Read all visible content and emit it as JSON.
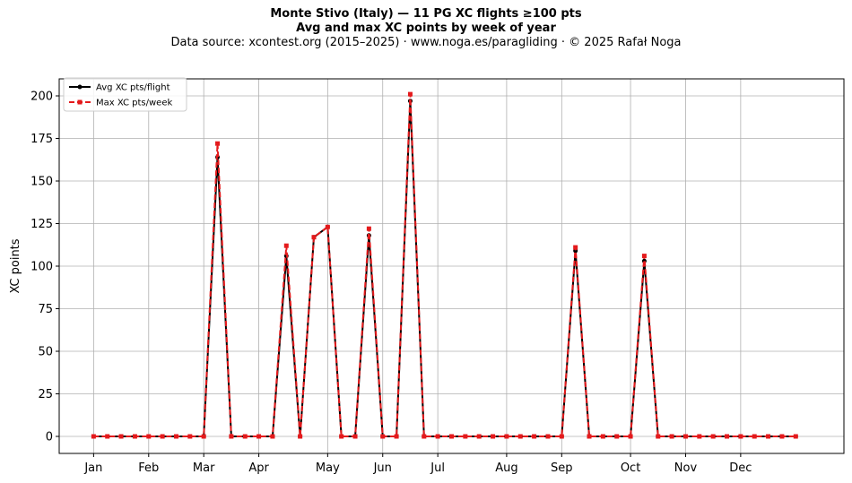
{
  "title": "Monte Stivo (Italy)  —  11 PG XC flights ≥100 pts",
  "subtitle": "Avg and max XC points by week of year",
  "source": "Data source: xcontest.org (2015–2025)  ·  www.noga.es/paragliding  ·  © 2025 Rafał Noga",
  "chart_data": {
    "type": "line",
    "title": "Monte Stivo (Italy)  —  11 PG XC flights ≥100 pts",
    "subtitle": "Avg and max XC points by week of year",
    "ylabel": "XC points",
    "xlabel": "",
    "ylim": [
      -10,
      210
    ],
    "xlim": [
      -2.5,
      54.5
    ],
    "yticks": [
      0,
      25,
      50,
      75,
      100,
      125,
      150,
      175,
      200
    ],
    "xticks": [
      {
        "week": 0,
        "label": "Jan"
      },
      {
        "week": 4,
        "label": "Feb"
      },
      {
        "week": 8,
        "label": "Mar"
      },
      {
        "week": 12,
        "label": "Apr"
      },
      {
        "week": 17,
        "label": "May"
      },
      {
        "week": 21,
        "label": "Jun"
      },
      {
        "week": 25,
        "label": "Jul"
      },
      {
        "week": 30,
        "label": "Aug"
      },
      {
        "week": 34,
        "label": "Sep"
      },
      {
        "week": 39,
        "label": "Oct"
      },
      {
        "week": 43,
        "label": "Nov"
      },
      {
        "week": 47,
        "label": "Dec"
      }
    ],
    "grid": true,
    "legend_position": "top-left",
    "x": [
      0,
      1,
      2,
      3,
      4,
      5,
      6,
      7,
      8,
      9,
      10,
      11,
      12,
      13,
      14,
      15,
      16,
      17,
      18,
      19,
      20,
      21,
      22,
      23,
      24,
      25,
      26,
      27,
      28,
      29,
      30,
      31,
      32,
      33,
      34,
      35,
      36,
      37,
      38,
      39,
      40,
      41,
      42,
      43,
      44,
      45,
      46,
      47,
      48,
      49,
      50,
      51
    ],
    "series": [
      {
        "name": "Avg XC pts/flight",
        "color": "#000000",
        "style": "solid",
        "marker": "circle",
        "values": [
          0,
          0,
          0,
          0,
          0,
          0,
          0,
          0,
          0,
          164,
          0,
          0,
          0,
          0,
          106,
          0,
          117,
          123,
          0,
          0,
          118,
          0,
          0,
          197,
          0,
          0,
          0,
          0,
          0,
          0,
          0,
          0,
          0,
          0,
          0,
          109,
          0,
          0,
          0,
          0,
          103,
          0,
          0,
          0,
          0,
          0,
          0,
          0,
          0,
          0,
          0,
          0
        ]
      },
      {
        "name": "Max XC pts/week",
        "color": "#e41a1c",
        "style": "dashed",
        "marker": "square",
        "values": [
          0,
          0,
          0,
          0,
          0,
          0,
          0,
          0,
          0,
          172,
          0,
          0,
          0,
          0,
          112,
          0,
          117,
          123,
          0,
          0,
          122,
          0,
          0,
          201,
          0,
          0,
          0,
          0,
          0,
          0,
          0,
          0,
          0,
          0,
          0,
          111,
          0,
          0,
          0,
          0,
          106,
          0,
          0,
          0,
          0,
          0,
          0,
          0,
          0,
          0,
          0,
          0
        ]
      }
    ]
  }
}
